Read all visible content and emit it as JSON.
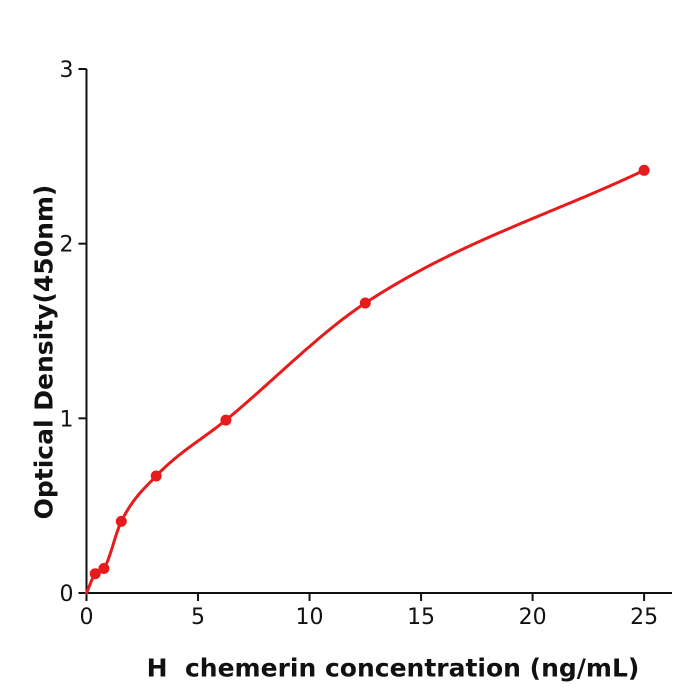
{
  "chart_data": {
    "type": "scatter",
    "title": "",
    "xlabel": "H  chemerin concentration (ng/mL)",
    "ylabel": "Optical Density(450nm)",
    "points": [
      {
        "x": 0.39,
        "y": 0.11
      },
      {
        "x": 0.78,
        "y": 0.14
      },
      {
        "x": 1.56,
        "y": 0.41
      },
      {
        "x": 3.125,
        "y": 0.67
      },
      {
        "x": 6.25,
        "y": 0.99
      },
      {
        "x": 12.5,
        "y": 1.66
      },
      {
        "x": 25,
        "y": 2.42
      }
    ],
    "fit_curve_start": {
      "x": 0,
      "y": 0
    },
    "xlim": [
      0,
      26.25
    ],
    "ylim": [
      0,
      3
    ],
    "xticks": [
      0,
      5,
      10,
      15,
      20,
      25
    ],
    "yticks": [
      0,
      1,
      2,
      3
    ],
    "grid": false,
    "legend": "none",
    "series_color": "#e81b1c",
    "axis_color": "#111111",
    "background_color": "#ffffff"
  }
}
